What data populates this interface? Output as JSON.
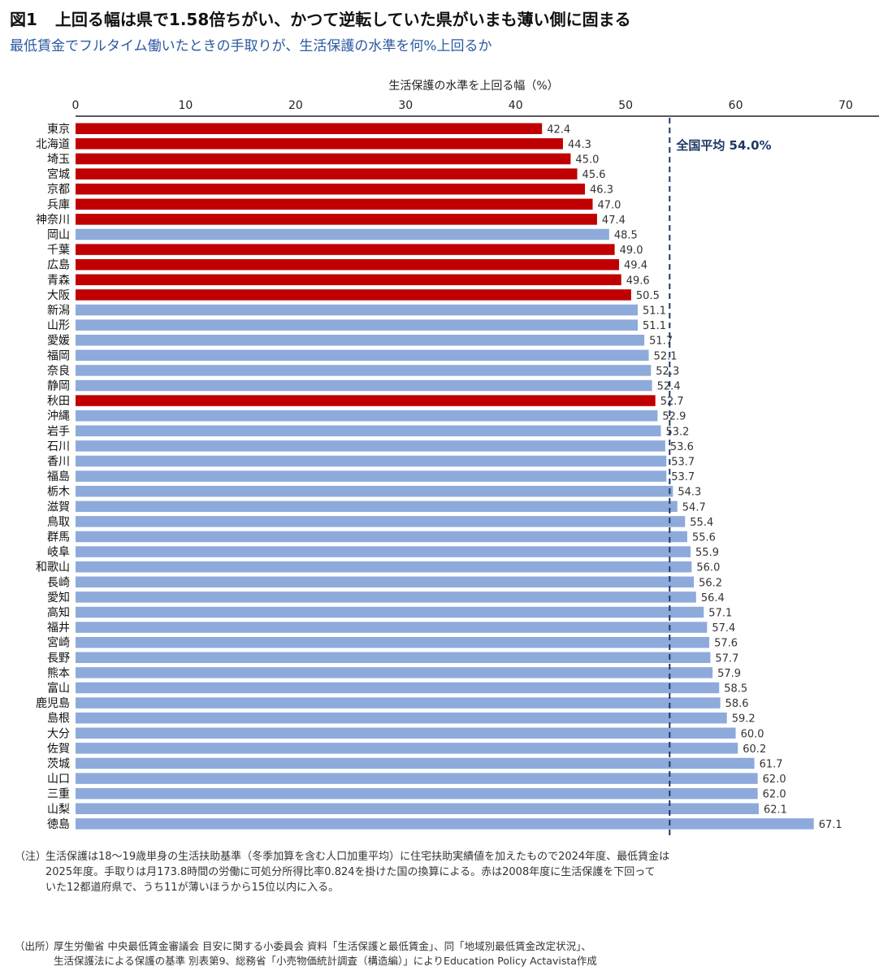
{
  "header": {
    "figure_no": "図1",
    "title": "上回る幅は県で1.58倍ちがい、かつて逆転していた県がいまも薄い側に固まる",
    "subtitle": "最低賃金でフルタイム働いたときの手取りが、生活保護の水準を何%上回るか"
  },
  "chart_data": {
    "type": "bar",
    "orientation": "horizontal",
    "xlabel": "生活保護の水準を上回る幅（%）",
    "xlim": [
      0,
      70
    ],
    "xticks": [
      0,
      10,
      20,
      30,
      40,
      50,
      60,
      70
    ],
    "xaxis_position": "top",
    "reference_line": {
      "value": 54.0,
      "label": "全国平均 54.0%",
      "style": "dashed",
      "color": "#1f3864"
    },
    "colors": {
      "highlight": "#c00000",
      "normal": "#8eaadb"
    },
    "categories": [
      "東京",
      "北海道",
      "埼玉",
      "宮城",
      "京都",
      "兵庫",
      "神奈川",
      "岡山",
      "千葉",
      "広島",
      "青森",
      "大阪",
      "新潟",
      "山形",
      "愛媛",
      "福岡",
      "奈良",
      "静岡",
      "秋田",
      "沖縄",
      "岩手",
      "石川",
      "香川",
      "福島",
      "栃木",
      "滋賀",
      "鳥取",
      "群馬",
      "岐阜",
      "和歌山",
      "長崎",
      "愛知",
      "高知",
      "福井",
      "宮崎",
      "長野",
      "熊本",
      "富山",
      "鹿児島",
      "島根",
      "大分",
      "佐賀",
      "茨城",
      "山口",
      "三重",
      "山梨",
      "徳島"
    ],
    "values": [
      42.4,
      44.3,
      45.0,
      45.6,
      46.3,
      47.0,
      47.4,
      48.5,
      49.0,
      49.4,
      49.6,
      50.5,
      51.1,
      51.1,
      51.7,
      52.1,
      52.3,
      52.4,
      52.7,
      52.9,
      53.2,
      53.6,
      53.7,
      53.7,
      54.3,
      54.7,
      55.4,
      55.6,
      55.9,
      56.0,
      56.2,
      56.4,
      57.1,
      57.4,
      57.6,
      57.7,
      57.9,
      58.5,
      58.6,
      59.2,
      60.0,
      60.2,
      61.7,
      62.0,
      62.0,
      62.1,
      67.1
    ],
    "value_labels": [
      "42.4",
      "44.3",
      "45.0",
      "45.6",
      "46.3",
      "47.0",
      "47.4",
      "48.5",
      "49.0",
      "49.4",
      "49.6",
      "50.5",
      "51.1",
      "51.1",
      "51.7",
      "52.1",
      "52.3",
      "52.4",
      "52.7",
      "52.9",
      "53.2",
      "53.6",
      "53.7",
      "53.7",
      "54.3",
      "54.7",
      "55.4",
      "55.6",
      "55.9",
      "56.0",
      "56.2",
      "56.4",
      "57.1",
      "57.4",
      "57.6",
      "57.7",
      "57.9",
      "58.5",
      "58.6",
      "59.2",
      "60.0",
      "60.2",
      "61.7",
      "62.0",
      "62.0",
      "62.1",
      "67.1"
    ],
    "highlighted": [
      true,
      true,
      true,
      true,
      true,
      true,
      true,
      false,
      true,
      true,
      true,
      true,
      false,
      false,
      false,
      false,
      false,
      false,
      true,
      false,
      false,
      false,
      false,
      false,
      false,
      false,
      false,
      false,
      false,
      false,
      false,
      false,
      false,
      false,
      false,
      false,
      false,
      false,
      false,
      false,
      false,
      false,
      false,
      false,
      false,
      false,
      false
    ]
  },
  "notes": {
    "label": "（注）",
    "lines": [
      "生活保護は18～19歳単身の生活扶助基準（冬季加算を含む人口加重平均）に住宅扶助実績値を加えたもので2024年度、最低賃金は",
      "2025年度。手取りは月173.8時間の労働に可処分所得比率0.824を掛けた国の換算による。赤は2008年度に生活保護を下回って",
      "いた12都道府県で、うち11が薄いほうから15位以内に入る。"
    ]
  },
  "source": {
    "label": "（出所）",
    "lines": [
      "厚生労働省 中央最低賃金審議会 目安に関する小委員会 資料「生活保護と最低賃金」、同「地域別最低賃金改定状況」、",
      "生活保護法による保護の基準 別表第9、総務省「小売物価統計調査（構造編）」によりEducation Policy Actavista作成"
    ]
  }
}
